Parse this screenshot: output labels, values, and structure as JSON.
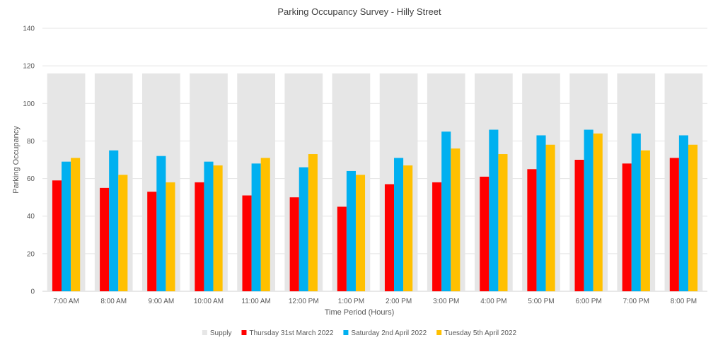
{
  "chart_data": {
    "type": "bar",
    "title": "Parking Occupancy Survey - Hilly Street",
    "xlabel": "Time Period (Hours)",
    "ylabel": "Parking Occupancy",
    "ylim": [
      0,
      140
    ],
    "yticks": [
      0,
      20,
      40,
      60,
      80,
      100,
      120,
      140
    ],
    "grid": true,
    "legend_position": "bottom",
    "categories": [
      "7:00 AM",
      "8:00 AM",
      "9:00 AM",
      "10:00 AM",
      "11:00 AM",
      "12:00 PM",
      "1:00 PM",
      "2:00 PM",
      "3:00 PM",
      "4:00 PM",
      "5:00 PM",
      "6:00 PM",
      "7:00 PM",
      "8:00 PM"
    ],
    "supply": {
      "name": "Supply",
      "color": "#e6e6e6",
      "values": [
        116,
        116,
        116,
        116,
        116,
        116,
        116,
        116,
        116,
        116,
        116,
        116,
        116,
        116
      ]
    },
    "series": [
      {
        "name": "Thursday 31st March 2022",
        "color": "#ff0000",
        "values": [
          59,
          55,
          53,
          58,
          51,
          50,
          45,
          57,
          58,
          61,
          65,
          70,
          68,
          71
        ]
      },
      {
        "name": "Saturday 2nd April 2022",
        "color": "#00b0f0",
        "values": [
          69,
          75,
          72,
          69,
          68,
          66,
          64,
          71,
          85,
          86,
          83,
          86,
          84,
          83
        ]
      },
      {
        "name": "Tuesday 5th April 2022",
        "color": "#ffc000",
        "values": [
          71,
          62,
          58,
          67,
          71,
          73,
          62,
          67,
          76,
          73,
          78,
          84,
          75,
          78
        ]
      }
    ]
  }
}
